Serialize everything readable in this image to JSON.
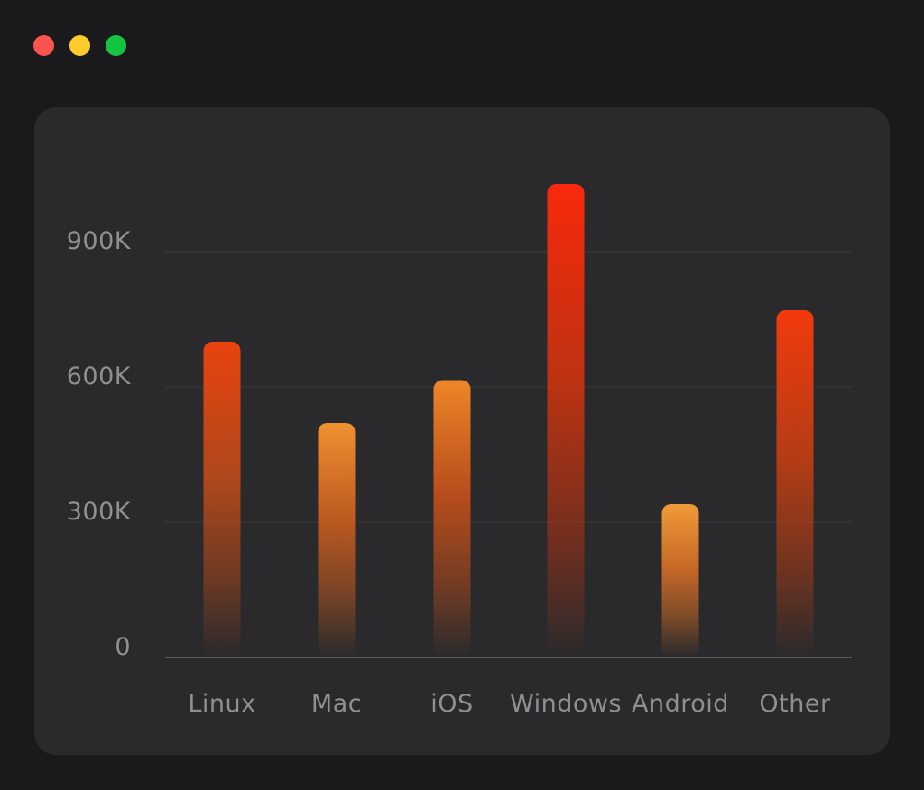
{
  "window": {
    "background_color": "#1a1a1c",
    "traffic_lights": [
      {
        "name": "close",
        "color": "#fb544e"
      },
      {
        "name": "minimize",
        "color": "#fdcb2c"
      },
      {
        "name": "maximize",
        "color": "#14c340"
      }
    ]
  },
  "card": {
    "background_color": "#2a2a2c"
  },
  "chart_data": {
    "type": "bar",
    "title": "",
    "categories": [
      "Linux",
      "Mac",
      "iOS",
      "Windows",
      "Android",
      "Other"
    ],
    "values": [
      700000,
      520000,
      615000,
      1050000,
      340000,
      770000
    ],
    "y_ticks": [
      {
        "label": "900K",
        "value": 900000
      },
      {
        "label": "600K",
        "value": 600000
      },
      {
        "label": "300K",
        "value": 300000
      },
      {
        "label": "0",
        "value": 0
      }
    ],
    "ylim": [
      0,
      1100000
    ],
    "grid": true,
    "legend": false,
    "xlabel": "",
    "ylabel": "",
    "bar_gradients": [
      {
        "category": "Linux",
        "top": "#e8430f",
        "mid": "#b5491a"
      },
      {
        "category": "Mac",
        "top": "#f09130",
        "mid": "#c05a20"
      },
      {
        "category": "iOS",
        "top": "#ee8628",
        "mid": "#bb4d1b"
      },
      {
        "category": "Windows",
        "top": "#f9290c",
        "mid": "#c13311"
      },
      {
        "category": "Android",
        "top": "#f19a39",
        "mid": "#cc6a26"
      },
      {
        "category": "Other",
        "top": "#f23a0e",
        "mid": "#ba3d14"
      }
    ],
    "text_color": "#8f8f92",
    "gridline_color": "rgba(255,255,255,0.06)",
    "axis_color": "rgba(255,255,255,0.24)"
  }
}
